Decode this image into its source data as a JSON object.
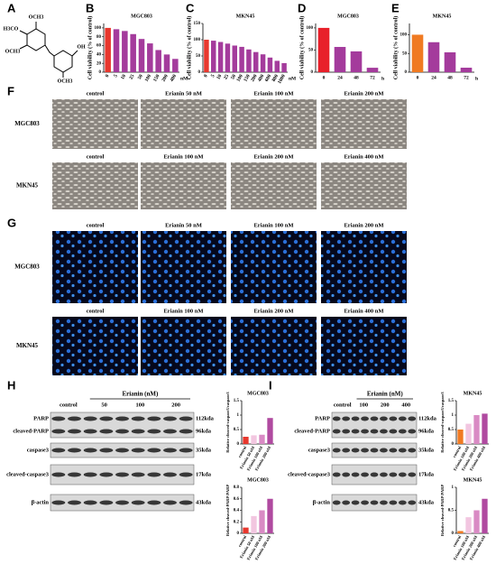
{
  "panel_labels": [
    "A",
    "B",
    "C",
    "D",
    "E",
    "F",
    "G",
    "H",
    "I"
  ],
  "structure_labels": [
    "OCH3",
    "H3CO",
    "OCH3",
    "OH",
    "OCH3"
  ],
  "chart_data": [
    {
      "type": "bar",
      "title": "MGC803",
      "y_label": "Cell viability (% of control)",
      "x_label": "nM",
      "categories": [
        "0",
        "5",
        "10",
        "25",
        "50",
        "100",
        "150",
        "200",
        "400"
      ],
      "values": [
        100,
        97,
        93,
        86,
        75,
        65,
        50,
        40,
        30
      ],
      "colors": [
        "#e8382e",
        "#a43b9c",
        "#a43b9c",
        "#a43b9c",
        "#a43b9c",
        "#a43b9c",
        "#a43b9c",
        "#a43b9c",
        "#a43b9c"
      ],
      "ylim": [
        0,
        110
      ],
      "yticks": [
        0,
        20,
        40,
        60,
        80,
        100
      ]
    },
    {
      "type": "bar",
      "title": "MKN45",
      "y_label": "Cell viability (% of control)",
      "x_label": "nM",
      "categories": [
        "0",
        "5",
        "10",
        "25",
        "50",
        "100",
        "150",
        "200",
        "400",
        "600",
        "800",
        "1000"
      ],
      "values": [
        100,
        97,
        93,
        88,
        82,
        78,
        70,
        62,
        55,
        45,
        35,
        28
      ],
      "colors": [
        "#e8382e",
        "#a43b9c",
        "#a43b9c",
        "#a43b9c",
        "#a43b9c",
        "#a43b9c",
        "#a43b9c",
        "#a43b9c",
        "#a43b9c",
        "#a43b9c",
        "#a43b9c",
        "#a43b9c"
      ],
      "ylim": [
        0,
        150
      ],
      "yticks": [
        0,
        50,
        100,
        150
      ]
    },
    {
      "type": "bar",
      "title": "MGC803",
      "y_label": "Cell viability (% of control)",
      "x_label": "h",
      "categories": [
        "0",
        "24",
        "48",
        "72"
      ],
      "values": [
        100,
        57,
        47,
        10
      ],
      "colors": [
        "#e8202a",
        "#a43b9c",
        "#a43b9c",
        "#a43b9c"
      ],
      "ylim": [
        0,
        110
      ],
      "yticks": [
        0,
        50,
        100
      ]
    },
    {
      "type": "bar",
      "title": "MKN45",
      "y_label": "Cell viability (% of control)",
      "x_label": "h",
      "categories": [
        "0",
        "24",
        "48",
        "72"
      ],
      "values": [
        100,
        80,
        53,
        12
      ],
      "colors": [
        "#f07a22",
        "#a43b9c",
        "#a43b9c",
        "#a43b9c"
      ],
      "ylim": [
        0,
        130
      ],
      "yticks": [
        0,
        50,
        100
      ]
    },
    {
      "type": "bar",
      "title": "MGC803",
      "y_label": "Relative cleaved-caspase3/caspase3",
      "categories": [
        "control",
        "Erianin 50 nM",
        "Erianin 100 nM",
        "Erianin 200 nM"
      ],
      "values": [
        0.25,
        0.3,
        0.32,
        0.9
      ],
      "colors": [
        "#e8382e",
        "#f2c6e0",
        "#d98ac4",
        "#b04aa0"
      ],
      "ylim": [
        0,
        1.5
      ],
      "yticks": [
        0,
        0.5,
        1,
        1.5
      ]
    },
    {
      "type": "bar",
      "title": "MGC803",
      "y_label": "Relative cleaved-PARP/PARP",
      "categories": [
        "control",
        "Erianin 50 nM",
        "Erianin 100 nM",
        "Erianin 200 nM"
      ],
      "values": [
        0.1,
        0.3,
        0.4,
        0.6
      ],
      "colors": [
        "#e8382e",
        "#f2c6e0",
        "#d98ac4",
        "#b04aa0"
      ],
      "ylim": [
        0,
        0.8
      ],
      "yticks": [
        0,
        0.2,
        0.4,
        0.6,
        0.8
      ]
    },
    {
      "type": "bar",
      "title": "MKN45",
      "y_label": "Relative cleaved-caspase3/caspase3",
      "categories": [
        "control",
        "Erianin 100 nM",
        "Erianin 200 nM",
        "Erianin 400 nM"
      ],
      "values": [
        0.5,
        0.7,
        1.0,
        1.05
      ],
      "colors": [
        "#f07a22",
        "#f2c6e0",
        "#d98ac4",
        "#b04aa0"
      ],
      "ylim": [
        0,
        1.5
      ],
      "yticks": [
        0,
        0.5,
        1,
        1.5
      ]
    },
    {
      "type": "bar",
      "title": "MKN45",
      "y_label": "Relative cleaved-PARP/PARP",
      "categories": [
        "control",
        "Erianin 100 nM",
        "Erianin 200 nM",
        "Erianin 400 nM"
      ],
      "values": [
        0.05,
        0.35,
        0.5,
        0.75
      ],
      "colors": [
        "#f07a22",
        "#f2c6e0",
        "#d98ac4",
        "#b04aa0"
      ],
      "ylim": [
        0,
        1
      ],
      "yticks": [
        0,
        0.5,
        1
      ]
    }
  ],
  "microscopy": [
    {
      "rows": [
        {
          "label": "MGC803",
          "images": [
            "control",
            "Erianin 50 nM",
            "Erianin 100 nM",
            "Erianin 200 nM"
          ]
        },
        {
          "label": "MKN45",
          "images": [
            "control",
            "Erianin 100 nM",
            "Erianin 200 nM",
            "Erianin 400 nM"
          ]
        }
      ]
    },
    {
      "rows": [
        {
          "label": "MGC803",
          "images": [
            "control",
            "Erianin 50 nM",
            "Erianin 100 nM",
            "Erianin 200 nM"
          ]
        },
        {
          "label": "MKN45",
          "images": [
            "control",
            "Erianin 100 nM",
            "Erianin 200 nM",
            "Erianin 400 nM"
          ]
        }
      ]
    }
  ],
  "blots": [
    {
      "treatment": "Erianin (nM)",
      "lanes": [
        "control",
        "50",
        "100",
        "200"
      ],
      "proteins": [
        "PARP",
        "cleaved-PARP",
        "caspase3",
        "cleaved-caspase3",
        "β-actin"
      ],
      "sizes": [
        "112kda",
        "96kda",
        "35kda",
        "17kda",
        "43kda"
      ]
    },
    {
      "treatment": "Erianin (nM)",
      "lanes": [
        "control",
        "100",
        "200",
        "400"
      ],
      "proteins": [
        "PARP",
        "cleaved-PARP",
        "caspase3",
        "cleaved-caspase3",
        "β-actin"
      ],
      "sizes": [
        "112kda",
        "96kda",
        "35kda",
        "17kda",
        "43kda"
      ]
    }
  ]
}
